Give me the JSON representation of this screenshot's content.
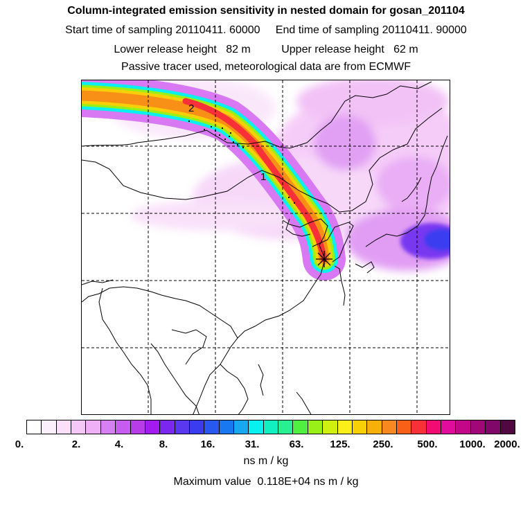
{
  "header": {
    "title": "Column-integrated emission sensitivity in nested domain for gosan_201104",
    "sampling_start": "Start time of sampling 20110411. 60000",
    "sampling_end": "End time of sampling 20110411. 90000",
    "release_lower": "Lower release height   82 m",
    "release_upper": "Upper release height   62 m",
    "tracer_note": "Passive tracer used, meteorological data are from ECMWF"
  },
  "map": {
    "labels": [
      "2",
      "1"
    ],
    "receptor_marker": "receptor-star"
  },
  "colorbar": {
    "colors": [
      "#ffffff",
      "#fdf0fd",
      "#fbe0fb",
      "#f6c8f8",
      "#f0b0f6",
      "#d680f2",
      "#c65cf0",
      "#b83ce8",
      "#a21cf0",
      "#7a28f0",
      "#5a38f0",
      "#3a3cf0",
      "#2858f0",
      "#1878f0",
      "#18a8f0",
      "#08f0f0",
      "#10f0c0",
      "#28f090",
      "#50f040",
      "#98f018",
      "#d0f010",
      "#f8f018",
      "#f8d008",
      "#f8b008",
      "#f88820",
      "#f86018",
      "#f83038",
      "#f00c70",
      "#e00c9c",
      "#c00888",
      "#a00878",
      "#800868",
      "#500840"
    ],
    "tick_labels": [
      "0.",
      "2.",
      "4.",
      "8.",
      "16.",
      "31.",
      "63.",
      "125.",
      "250.",
      "500.",
      "1000.",
      "2000."
    ],
    "units": "ns m / kg"
  },
  "footer": {
    "max_value": "Maximum value  0.118E+04 ns m / kg"
  }
}
